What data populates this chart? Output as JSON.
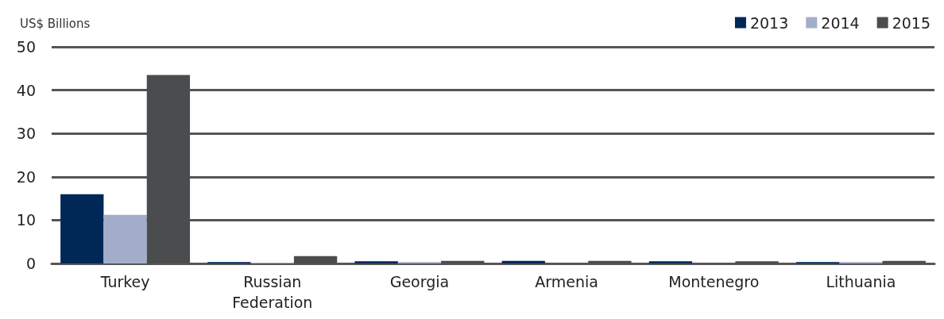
{
  "chart_data": {
    "type": "bar",
    "ylabel": "US$ Billions",
    "categories": [
      "Turkey",
      "Russian\nFederation",
      "Georgia",
      "Armenia",
      "Montenegro",
      "Lithuania"
    ],
    "series": [
      {
        "name": "2013",
        "color": "#002856",
        "values": [
          16,
          0.3,
          0.5,
          0.6,
          0.5,
          0.3
        ]
      },
      {
        "name": "2014",
        "color": "#a2aec9",
        "values": [
          11.2,
          0.2,
          0.3,
          null,
          null,
          0.3
        ]
      },
      {
        "name": "2015",
        "color": "#4b4c4e",
        "values": [
          43.5,
          1.7,
          0.6,
          0.6,
          0.5,
          0.6
        ]
      }
    ],
    "ylim": [
      0,
      50
    ],
    "yticks": [
      0,
      10,
      20,
      30,
      40,
      50
    ],
    "grid": "y",
    "legend": "top right"
  }
}
